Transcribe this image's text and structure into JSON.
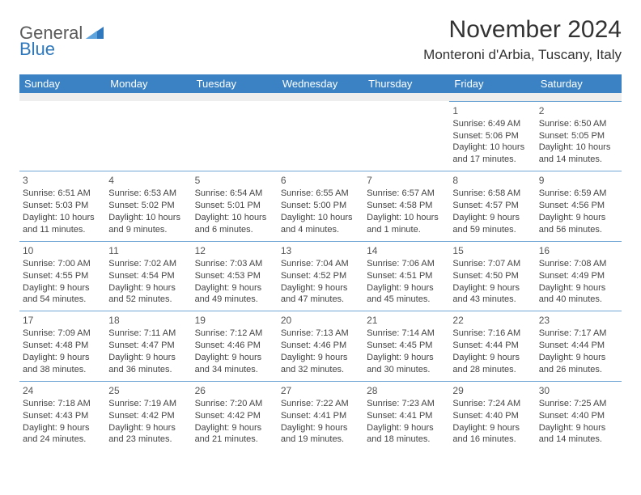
{
  "logo": {
    "part1": "General",
    "part2": "Blue"
  },
  "title": "November 2024",
  "location": "Monteroni d'Arbia, Tuscany, Italy",
  "colors": {
    "header_bg": "#3a82c4",
    "header_text": "#ffffff",
    "rule": "#6fa6d6",
    "spacer": "#eeeeee",
    "logo_gray": "#5a5a5a",
    "logo_blue": "#2f78bd",
    "body_text": "#444444"
  },
  "dayNames": [
    "Sunday",
    "Monday",
    "Tuesday",
    "Wednesday",
    "Thursday",
    "Friday",
    "Saturday"
  ],
  "weeks": [
    [
      null,
      null,
      null,
      null,
      null,
      {
        "n": "1",
        "sunrise": "6:49 AM",
        "sunset": "5:06 PM",
        "daylight": "10 hours and 17 minutes."
      },
      {
        "n": "2",
        "sunrise": "6:50 AM",
        "sunset": "5:05 PM",
        "daylight": "10 hours and 14 minutes."
      }
    ],
    [
      {
        "n": "3",
        "sunrise": "6:51 AM",
        "sunset": "5:03 PM",
        "daylight": "10 hours and 11 minutes."
      },
      {
        "n": "4",
        "sunrise": "6:53 AM",
        "sunset": "5:02 PM",
        "daylight": "10 hours and 9 minutes."
      },
      {
        "n": "5",
        "sunrise": "6:54 AM",
        "sunset": "5:01 PM",
        "daylight": "10 hours and 6 minutes."
      },
      {
        "n": "6",
        "sunrise": "6:55 AM",
        "sunset": "5:00 PM",
        "daylight": "10 hours and 4 minutes."
      },
      {
        "n": "7",
        "sunrise": "6:57 AM",
        "sunset": "4:58 PM",
        "daylight": "10 hours and 1 minute."
      },
      {
        "n": "8",
        "sunrise": "6:58 AM",
        "sunset": "4:57 PM",
        "daylight": "9 hours and 59 minutes."
      },
      {
        "n": "9",
        "sunrise": "6:59 AM",
        "sunset": "4:56 PM",
        "daylight": "9 hours and 56 minutes."
      }
    ],
    [
      {
        "n": "10",
        "sunrise": "7:00 AM",
        "sunset": "4:55 PM",
        "daylight": "9 hours and 54 minutes."
      },
      {
        "n": "11",
        "sunrise": "7:02 AM",
        "sunset": "4:54 PM",
        "daylight": "9 hours and 52 minutes."
      },
      {
        "n": "12",
        "sunrise": "7:03 AM",
        "sunset": "4:53 PM",
        "daylight": "9 hours and 49 minutes."
      },
      {
        "n": "13",
        "sunrise": "7:04 AM",
        "sunset": "4:52 PM",
        "daylight": "9 hours and 47 minutes."
      },
      {
        "n": "14",
        "sunrise": "7:06 AM",
        "sunset": "4:51 PM",
        "daylight": "9 hours and 45 minutes."
      },
      {
        "n": "15",
        "sunrise": "7:07 AM",
        "sunset": "4:50 PM",
        "daylight": "9 hours and 43 minutes."
      },
      {
        "n": "16",
        "sunrise": "7:08 AM",
        "sunset": "4:49 PM",
        "daylight": "9 hours and 40 minutes."
      }
    ],
    [
      {
        "n": "17",
        "sunrise": "7:09 AM",
        "sunset": "4:48 PM",
        "daylight": "9 hours and 38 minutes."
      },
      {
        "n": "18",
        "sunrise": "7:11 AM",
        "sunset": "4:47 PM",
        "daylight": "9 hours and 36 minutes."
      },
      {
        "n": "19",
        "sunrise": "7:12 AM",
        "sunset": "4:46 PM",
        "daylight": "9 hours and 34 minutes."
      },
      {
        "n": "20",
        "sunrise": "7:13 AM",
        "sunset": "4:46 PM",
        "daylight": "9 hours and 32 minutes."
      },
      {
        "n": "21",
        "sunrise": "7:14 AM",
        "sunset": "4:45 PM",
        "daylight": "9 hours and 30 minutes."
      },
      {
        "n": "22",
        "sunrise": "7:16 AM",
        "sunset": "4:44 PM",
        "daylight": "9 hours and 28 minutes."
      },
      {
        "n": "23",
        "sunrise": "7:17 AM",
        "sunset": "4:44 PM",
        "daylight": "9 hours and 26 minutes."
      }
    ],
    [
      {
        "n": "24",
        "sunrise": "7:18 AM",
        "sunset": "4:43 PM",
        "daylight": "9 hours and 24 minutes."
      },
      {
        "n": "25",
        "sunrise": "7:19 AM",
        "sunset": "4:42 PM",
        "daylight": "9 hours and 23 minutes."
      },
      {
        "n": "26",
        "sunrise": "7:20 AM",
        "sunset": "4:42 PM",
        "daylight": "9 hours and 21 minutes."
      },
      {
        "n": "27",
        "sunrise": "7:22 AM",
        "sunset": "4:41 PM",
        "daylight": "9 hours and 19 minutes."
      },
      {
        "n": "28",
        "sunrise": "7:23 AM",
        "sunset": "4:41 PM",
        "daylight": "9 hours and 18 minutes."
      },
      {
        "n": "29",
        "sunrise": "7:24 AM",
        "sunset": "4:40 PM",
        "daylight": "9 hours and 16 minutes."
      },
      {
        "n": "30",
        "sunrise": "7:25 AM",
        "sunset": "4:40 PM",
        "daylight": "9 hours and 14 minutes."
      }
    ]
  ],
  "labels": {
    "sunrise": "Sunrise: ",
    "sunset": "Sunset: ",
    "daylight": "Daylight: "
  }
}
